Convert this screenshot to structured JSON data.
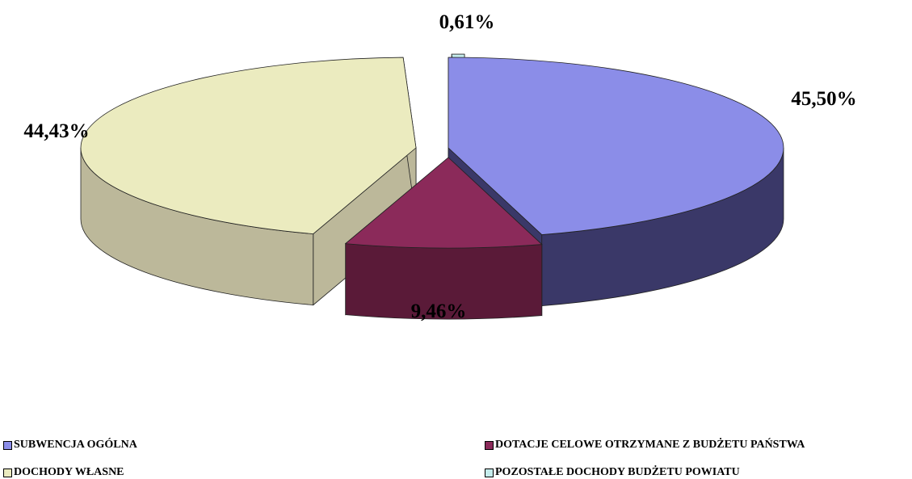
{
  "chart_data": {
    "type": "pie",
    "style": "3d-exploded",
    "categories": [
      "SUBWENCJA OGÓLNA",
      "DOTACJE CELOWE OTRZYMANE Z BUDŻETU PAŃSTWA",
      "DOCHODY WŁASNE",
      "POZOSTAŁE DOCHODY BUDŻETU POWIATU"
    ],
    "values": [
      45.5,
      9.46,
      44.43,
      0.61
    ],
    "labels": [
      "45,50%",
      "9,46%",
      "44,43%",
      "0,61%"
    ],
    "colors": [
      "#8b8de8",
      "#8b2a5a",
      "#ebebbf",
      "#c5ecec"
    ],
    "side_colors": [
      "#3a3868",
      "#5a1a38",
      "#bcb89a",
      "#5e7a7a"
    ],
    "legend_position": "bottom"
  }
}
